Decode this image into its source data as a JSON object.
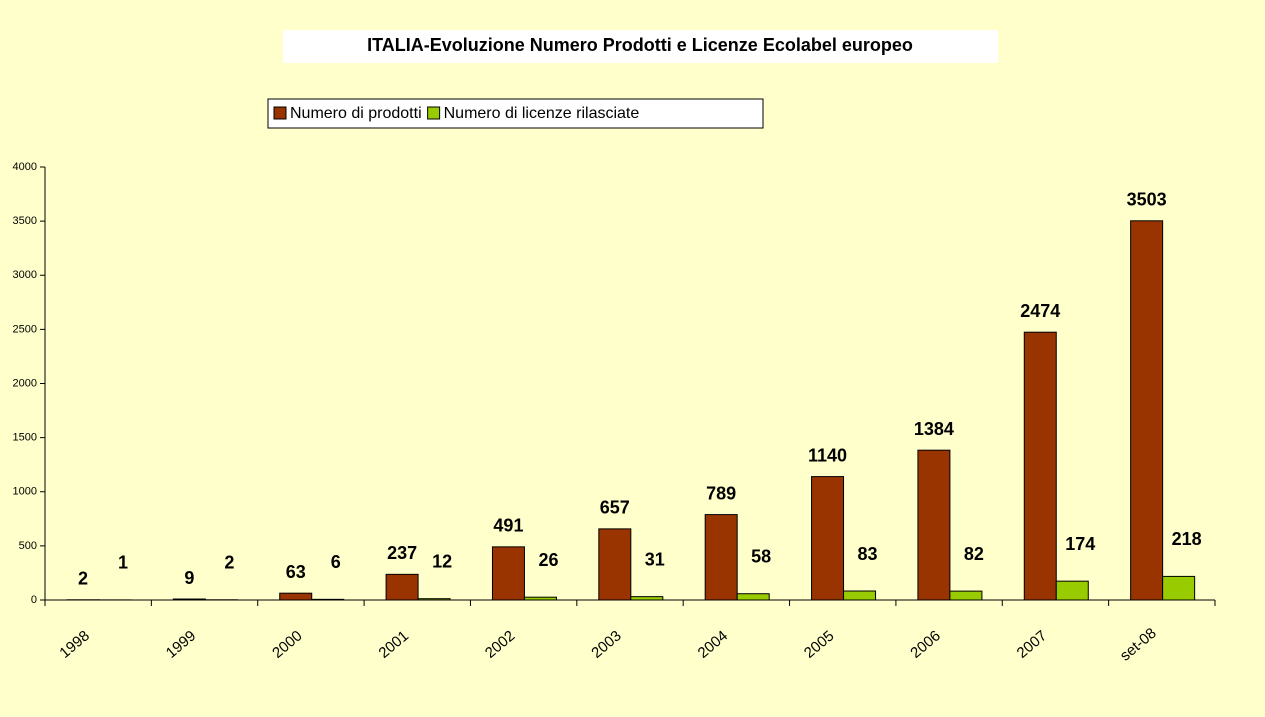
{
  "chart_data": {
    "type": "bar",
    "title": "ITALIA-Evoluzione Numero Prodotti e  Licenze Ecolabel europeo",
    "categories": [
      "1998",
      "1999",
      "2000",
      "2001",
      "2002",
      "2003",
      "2004",
      "2005",
      "2006",
      "2007",
      "set-08"
    ],
    "series": [
      {
        "name": "Numero di prodotti",
        "color": "#993300",
        "values": [
          2,
          9,
          63,
          237,
          491,
          657,
          789,
          1140,
          1384,
          2474,
          3503
        ]
      },
      {
        "name": "Numero di licenze rilasciate",
        "color": "#99cc00",
        "values": [
          1,
          2,
          6,
          12,
          26,
          31,
          58,
          83,
          82,
          174,
          218
        ]
      }
    ],
    "ylim": [
      0,
      4000
    ],
    "yticks": [
      0,
      500,
      1000,
      1500,
      2000,
      2500,
      3000,
      3500,
      4000
    ],
    "grid": false,
    "legend": "top"
  }
}
